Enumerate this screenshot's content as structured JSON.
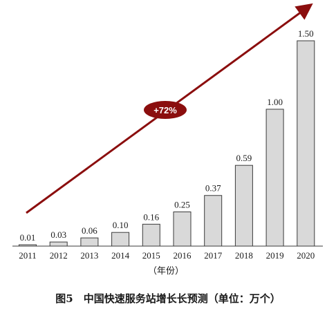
{
  "chart_data": {
    "type": "bar",
    "categories": [
      "2011",
      "2012",
      "2013",
      "2014",
      "2015",
      "2016",
      "2017",
      "2018",
      "2019",
      "2020"
    ],
    "values": [
      0.01,
      0.03,
      0.06,
      0.1,
      0.16,
      0.25,
      0.37,
      0.59,
      1.0,
      1.5
    ],
    "value_labels": [
      "0.01",
      "0.03",
      "0.06",
      "0.10",
      "0.16",
      "0.25",
      "0.37",
      "0.59",
      "1.00",
      "1.50"
    ],
    "xlabel": "（年份）",
    "caption": "图5　中国快速服务站增长长预测（单位：万个）",
    "growth_label": "+72%",
    "ylim": [
      0,
      1.5
    ],
    "grid": false,
    "colors": {
      "bar_fill": "#d9d9d9",
      "bar_stroke": "#3a3a3a",
      "arrow": "#8b0e0e",
      "badge": "#8b0e0e",
      "badge_text": "#ffffff"
    }
  }
}
